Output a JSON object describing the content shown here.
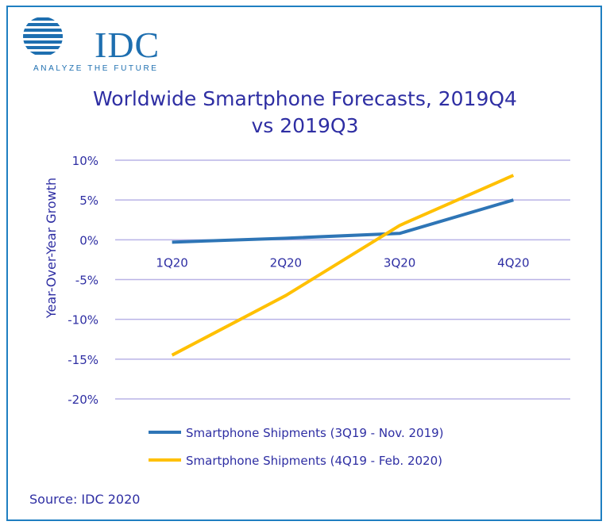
{
  "logo": {
    "name": "IDC",
    "tagline": "ANALYZE THE FUTURE"
  },
  "title_line1": "Worldwide Smartphone Forecasts, 2019Q4",
  "title_line2": "vs 2019Q3",
  "source": "Source: IDC 2020",
  "colors": {
    "text": "#2e2ea3",
    "grid": "#b9b3e6",
    "series1": "#2e75b6",
    "series2": "#ffc000",
    "border": "#1f7fc1"
  },
  "chart_data": {
    "type": "line",
    "title": "Worldwide Smartphone Forecasts, 2019Q4 vs 2019Q3",
    "ylabel": "Year-Over-Year Growth",
    "xlabel": "",
    "categories": [
      "1Q20",
      "2Q20",
      "3Q20",
      "4Q20"
    ],
    "y_ticks": [
      "10%",
      "5%",
      "0%",
      "-5%",
      "-10%",
      "-15%",
      "-20%"
    ],
    "ylim": [
      -20,
      10
    ],
    "grid": true,
    "legend_position": "bottom",
    "series": [
      {
        "name": "Smartphone Shipments (3Q19 - Nov. 2019)",
        "values": [
          -0.3,
          0.2,
          0.8,
          5.0
        ]
      },
      {
        "name": "Smartphone Shipments (4Q19 - Feb. 2020)",
        "values": [
          -14.5,
          -7.0,
          1.8,
          8.1
        ]
      }
    ]
  }
}
